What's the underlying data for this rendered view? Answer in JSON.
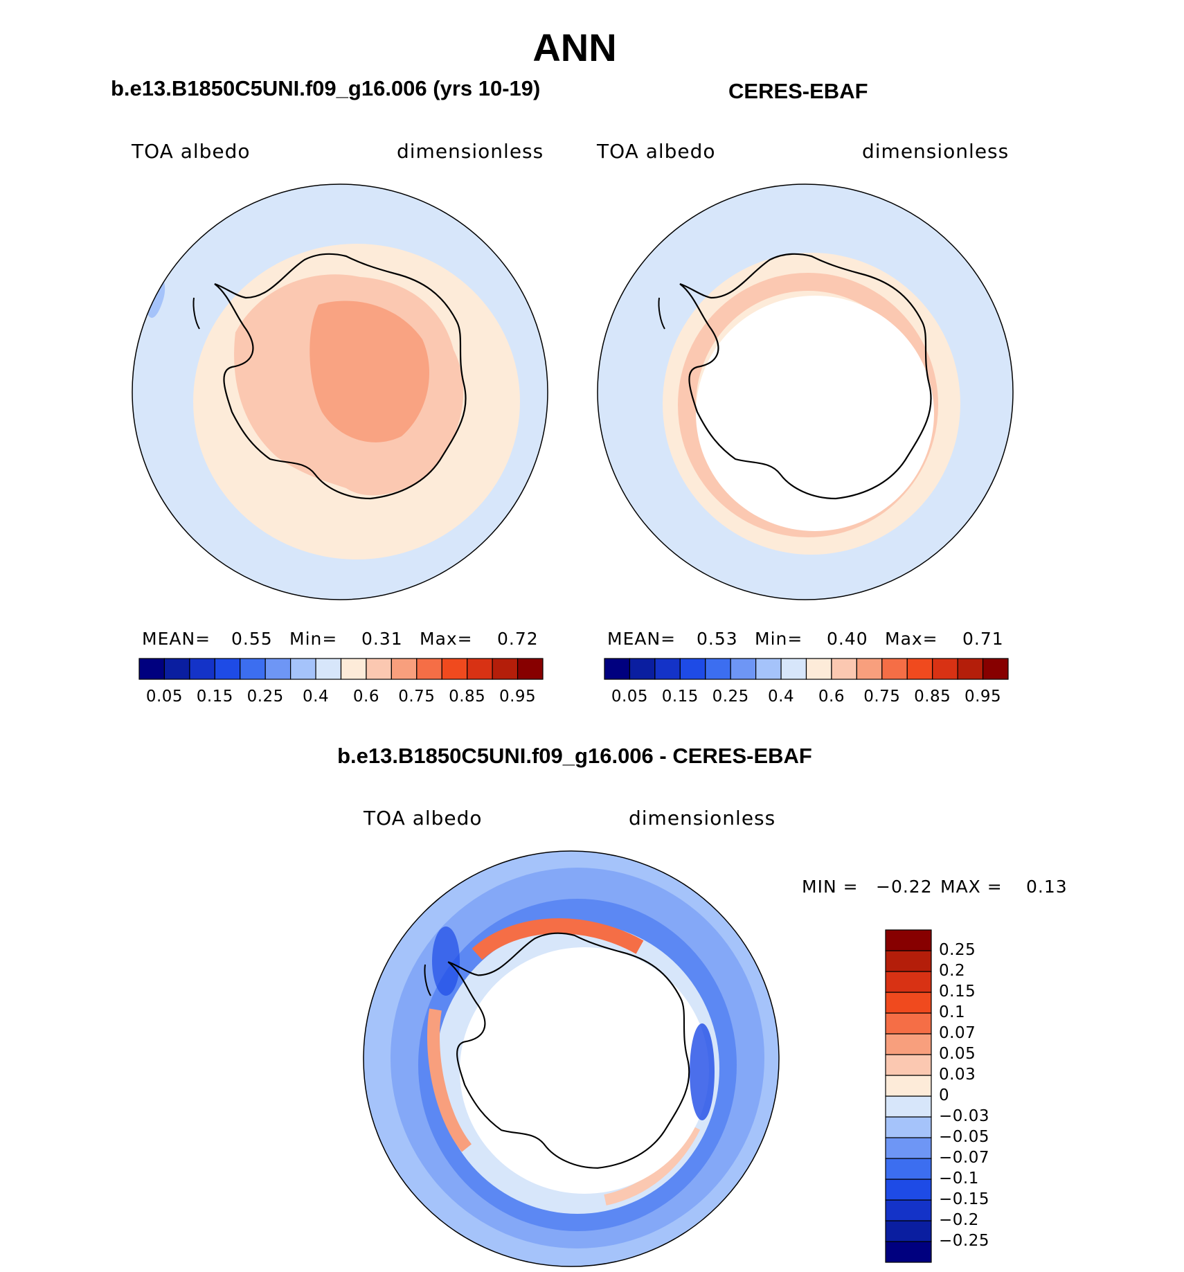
{
  "title": "ANN",
  "panels": {
    "model": {
      "title": "b.e13.B1850C5UNI.f09_g16.006 (yrs 10-19)",
      "variable": "TOA albedo",
      "units": "dimensionless",
      "stats": {
        "mean_label": "MEAN=",
        "mean": "0.55",
        "min_label": "Min=",
        "min": "0.31",
        "max_label": "Max=",
        "max": "0.72"
      }
    },
    "obs": {
      "title": "CERES-EBAF",
      "variable": "TOA albedo",
      "units": "dimensionless",
      "stats": {
        "mean_label": "MEAN=",
        "mean": "0.53",
        "min_label": "Min=",
        "min": "0.40",
        "max_label": "Max=",
        "max": "0.71"
      }
    },
    "diff": {
      "title": "b.e13.B1850C5UNI.f09_g16.006 - CERES-EBAF",
      "variable": "TOA albedo",
      "units": "dimensionless",
      "stats": {
        "min_label": "MIN =",
        "min": "−0.22",
        "max_label": "MAX =",
        "max": "0.13"
      }
    }
  },
  "colorbar_main": {
    "colors": [
      "#00007f",
      "#0a1ea0",
      "#1433c8",
      "#1e4be6",
      "#3c6ef0",
      "#6e96f5",
      "#a5c3fa",
      "#d7e6fa",
      "#fdebd9",
      "#fbc8b1",
      "#f89f7d",
      "#f56e46",
      "#f04a1e",
      "#d83214",
      "#b41e0a",
      "#870000"
    ],
    "tick_labels": [
      "0.05",
      "0.15",
      "0.25",
      "0.4",
      "0.6",
      "0.75",
      "0.85",
      "0.95"
    ]
  },
  "colorbar_diff": {
    "colors": [
      "#00007f",
      "#0a1ea0",
      "#1433c8",
      "#1e4be6",
      "#3c6ef0",
      "#6e96f5",
      "#a5c3fa",
      "#d7e6fa",
      "#fdebd9",
      "#fbc8b1",
      "#f89f7d",
      "#f56e46",
      "#f04a1e",
      "#d83214",
      "#b41e0a",
      "#870000"
    ],
    "tick_labels": [
      "0.25",
      "0.2",
      "0.15",
      "0.1",
      "0.07",
      "0.05",
      "0.03",
      "0",
      "−0.03",
      "−0.05",
      "−0.07",
      "−0.1",
      "−0.15",
      "−0.2",
      "−0.25"
    ]
  }
}
